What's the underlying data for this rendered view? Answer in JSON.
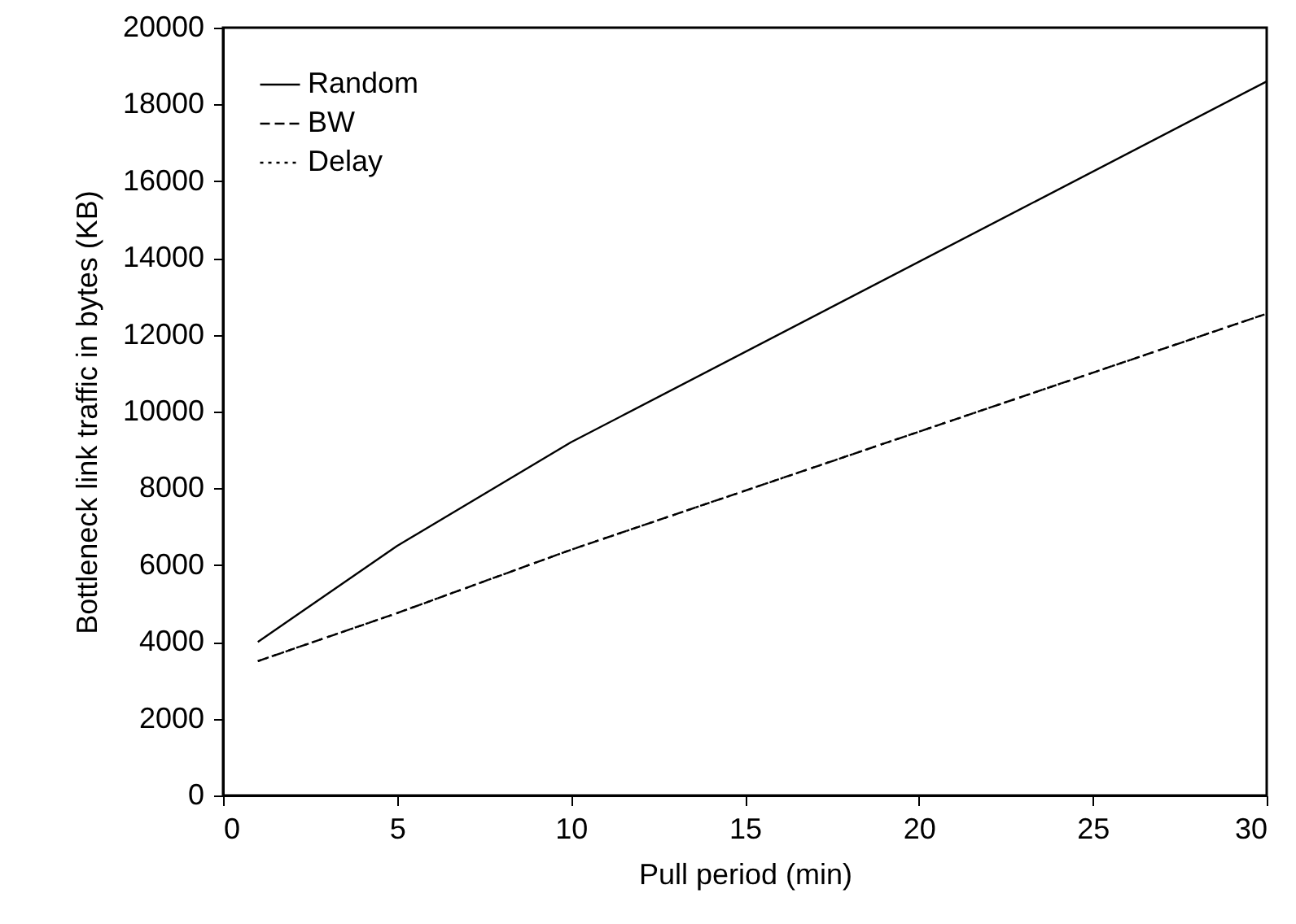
{
  "chart_data": {
    "type": "line",
    "xlabel": "Pull period (min)",
    "ylabel": "Bottleneck link traffic in bytes (KB)",
    "x": [
      1,
      5,
      10,
      30
    ],
    "series": [
      {
        "name": "Random",
        "color": "#000000",
        "line_style": "solid",
        "values": [
          4000,
          6500,
          9200,
          18600
        ]
      },
      {
        "name": "BW",
        "color": "#000000",
        "line_style": "dashed",
        "values": [
          3500,
          4750,
          6400,
          12550
        ]
      },
      {
        "name": "Delay",
        "color": "#000000",
        "line_style": "dotted",
        "values": [
          3500,
          4750,
          6400,
          12550
        ]
      }
    ],
    "xlim": [
      0,
      30
    ],
    "xticks": [
      0,
      5,
      10,
      15,
      20,
      25,
      30
    ],
    "ylim": [
      0,
      20000
    ],
    "yticks": [
      0,
      2000,
      4000,
      6000,
      8000,
      10000,
      12000,
      14000,
      16000,
      18000,
      20000
    ],
    "grid": false,
    "legend": "top left",
    "marker": "none"
  }
}
